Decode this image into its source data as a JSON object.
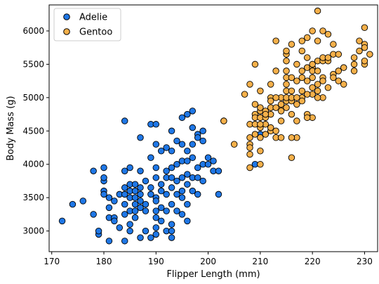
{
  "chart_data": {
    "type": "scatter",
    "xlabel": "Flipper Length (mm)",
    "ylabel": "Body Mass (g)",
    "xlim": [
      169.5,
      232.5
    ],
    "ylim": [
      2690,
      6390
    ],
    "xticks": [
      170,
      180,
      190,
      200,
      210,
      220,
      230
    ],
    "yticks": [
      3000,
      3500,
      4000,
      4500,
      5000,
      5500,
      6000
    ],
    "grid": false,
    "legend": "top-left",
    "series": [
      {
        "name": "Adelie",
        "color": "#1f77e6",
        "points": [
          [
            172,
            3150
          ],
          [
            174,
            3400
          ],
          [
            176,
            3450
          ],
          [
            178,
            3250
          ],
          [
            178,
            3900
          ],
          [
            179,
            2950
          ],
          [
            179,
            3000
          ],
          [
            180,
            3950
          ],
          [
            180,
            3750
          ],
          [
            180,
            3800
          ],
          [
            180,
            3600
          ],
          [
            180,
            3550
          ],
          [
            181,
            3350
          ],
          [
            181,
            3200
          ],
          [
            181,
            3500
          ],
          [
            181,
            2850
          ],
          [
            182,
            3200
          ],
          [
            182,
            3450
          ],
          [
            182,
            3150
          ],
          [
            183,
            3050
          ],
          [
            183,
            3550
          ],
          [
            184,
            4650
          ],
          [
            184,
            3900
          ],
          [
            184,
            3650
          ],
          [
            184,
            3550
          ],
          [
            184,
            3400
          ],
          [
            184,
            3250
          ],
          [
            184,
            2850
          ],
          [
            185,
            3950
          ],
          [
            185,
            3700
          ],
          [
            185,
            3600
          ],
          [
            185,
            3500
          ],
          [
            185,
            3300
          ],
          [
            185,
            3100
          ],
          [
            185,
            3000
          ],
          [
            186,
            3500
          ],
          [
            186,
            3600
          ],
          [
            186,
            3700
          ],
          [
            186,
            3400
          ],
          [
            186,
            3300
          ],
          [
            186,
            3200
          ],
          [
            187,
            3450
          ],
          [
            187,
            3650
          ],
          [
            187,
            3550
          ],
          [
            187,
            3350
          ],
          [
            187,
            2900
          ],
          [
            187,
            3900
          ],
          [
            188,
            3000
          ],
          [
            188,
            3400
          ],
          [
            188,
            3750
          ],
          [
            188,
            3300
          ],
          [
            189,
            4100
          ],
          [
            189,
            2900
          ],
          [
            189,
            3550
          ],
          [
            189,
            3650
          ],
          [
            190,
            3300
          ],
          [
            190,
            4300
          ],
          [
            190,
            3950
          ],
          [
            190,
            3800
          ],
          [
            190,
            3500
          ],
          [
            190,
            3450
          ],
          [
            190,
            3200
          ],
          [
            190,
            3050
          ],
          [
            190,
            2950
          ],
          [
            191,
            3700
          ],
          [
            191,
            3350
          ],
          [
            191,
            3150
          ],
          [
            191,
            3600
          ],
          [
            192,
            3900
          ],
          [
            192,
            3550
          ],
          [
            192,
            3800
          ],
          [
            192,
            3300
          ],
          [
            192,
            3000
          ],
          [
            193,
            4200
          ],
          [
            193,
            3950
          ],
          [
            193,
            3800
          ],
          [
            193,
            3650
          ],
          [
            193,
            3400
          ],
          [
            193,
            3100
          ],
          [
            193,
            3000
          ],
          [
            193,
            2900
          ],
          [
            194,
            4000
          ],
          [
            194,
            3750
          ],
          [
            194,
            3550
          ],
          [
            194,
            3300
          ],
          [
            195,
            4300
          ],
          [
            195,
            4050
          ],
          [
            195,
            3800
          ],
          [
            195,
            3600
          ],
          [
            195,
            3500
          ],
          [
            195,
            3250
          ],
          [
            196,
            4200
          ],
          [
            196,
            4050
          ],
          [
            196,
            3850
          ],
          [
            196,
            3700
          ],
          [
            196,
            3400
          ],
          [
            196,
            3150
          ],
          [
            197,
            4550
          ],
          [
            197,
            4300
          ],
          [
            197,
            4100
          ],
          [
            197,
            3800
          ],
          [
            197,
            3600
          ],
          [
            198,
            4450
          ],
          [
            198,
            3950
          ],
          [
            198,
            3800
          ],
          [
            198,
            3550
          ],
          [
            199,
            4350
          ],
          [
            199,
            4000
          ],
          [
            199,
            3750
          ],
          [
            200,
            4000
          ],
          [
            200,
            4100
          ],
          [
            201,
            4050
          ],
          [
            201,
            3900
          ],
          [
            202,
            3550
          ],
          [
            202,
            3900
          ],
          [
            203,
            4650
          ],
          [
            209,
            4000
          ],
          [
            210,
            4450
          ],
          [
            189,
            4600
          ],
          [
            190,
            4600
          ],
          [
            191,
            4200
          ],
          [
            192,
            4250
          ],
          [
            193,
            4500
          ],
          [
            194,
            4350
          ],
          [
            195,
            4700
          ],
          [
            196,
            4750
          ],
          [
            197,
            4800
          ],
          [
            198,
            4400
          ],
          [
            199,
            4500
          ],
          [
            187,
            4400
          ]
        ]
      },
      {
        "name": "Gentoo",
        "color": "#f5b04a",
        "points": [
          [
            203,
            4650
          ],
          [
            205,
            4300
          ],
          [
            207,
            5050
          ],
          [
            208,
            4600
          ],
          [
            208,
            4300
          ],
          [
            208,
            4400
          ],
          [
            209,
            4450
          ],
          [
            208,
            3950
          ],
          [
            208,
            4150
          ],
          [
            208,
            4250
          ],
          [
            208,
            5200
          ],
          [
            209,
            5500
          ],
          [
            209,
            4750
          ],
          [
            209,
            4600
          ],
          [
            209,
            4700
          ],
          [
            210,
            4200
          ],
          [
            210,
            4000
          ],
          [
            210,
            4400
          ],
          [
            210,
            4550
          ],
          [
            210,
            4800
          ],
          [
            210,
            5100
          ],
          [
            210,
            4850
          ],
          [
            210,
            4700
          ],
          [
            211,
            4800
          ],
          [
            211,
            4600
          ],
          [
            211,
            4450
          ],
          [
            212,
            4500
          ],
          [
            212,
            4750
          ],
          [
            212,
            4850
          ],
          [
            212,
            5000
          ],
          [
            212,
            5200
          ],
          [
            213,
            4500
          ],
          [
            213,
            4400
          ],
          [
            213,
            5850
          ],
          [
            213,
            5400
          ],
          [
            214,
            4850
          ],
          [
            214,
            4650
          ],
          [
            214,
            5000
          ],
          [
            214,
            4400
          ],
          [
            215,
            4950
          ],
          [
            215,
            5000
          ],
          [
            215,
            5100
          ],
          [
            215,
            5200
          ],
          [
            215,
            5300
          ],
          [
            215,
            5400
          ],
          [
            215,
            5550
          ],
          [
            215,
            5650
          ],
          [
            216,
            4100
          ],
          [
            216,
            4950
          ],
          [
            216,
            4750
          ],
          [
            216,
            5000
          ],
          [
            216,
            5300
          ],
          [
            216,
            5800
          ],
          [
            217,
            4900
          ],
          [
            217,
            4650
          ],
          [
            217,
            5250
          ],
          [
            217,
            4400
          ],
          [
            218,
            5300
          ],
          [
            218,
            5000
          ],
          [
            218,
            5400
          ],
          [
            218,
            5700
          ],
          [
            218,
            5850
          ],
          [
            219,
            5250
          ],
          [
            219,
            4750
          ],
          [
            219,
            5450
          ],
          [
            219,
            5900
          ],
          [
            220,
            4700
          ],
          [
            220,
            5050
          ],
          [
            220,
            5300
          ],
          [
            220,
            5450
          ],
          [
            220,
            6000
          ],
          [
            220,
            5400
          ],
          [
            221,
            5100
          ],
          [
            221,
            5200
          ],
          [
            221,
            5550
          ],
          [
            221,
            5850
          ],
          [
            221,
            6300
          ],
          [
            222,
            5000
          ],
          [
            222,
            5300
          ],
          [
            222,
            5550
          ],
          [
            222,
            6000
          ],
          [
            223,
            5150
          ],
          [
            223,
            5550
          ],
          [
            223,
            5950
          ],
          [
            224,
            5350
          ],
          [
            224,
            5650
          ],
          [
            225,
            5250
          ],
          [
            225,
            5400
          ],
          [
            226,
            5200
          ],
          [
            228,
            5400
          ],
          [
            228,
            5600
          ],
          [
            229,
            5700
          ],
          [
            229,
            5850
          ],
          [
            230,
            5800
          ],
          [
            230,
            5500
          ],
          [
            230,
            5550
          ],
          [
            230,
            6050
          ],
          [
            231,
            5650
          ],
          [
            214,
            4900
          ],
          [
            215,
            4850
          ],
          [
            216,
            5100
          ],
          [
            217,
            5000
          ],
          [
            218,
            5100
          ],
          [
            219,
            5050
          ],
          [
            220,
            5150
          ],
          [
            221,
            5400
          ],
          [
            222,
            5600
          ],
          [
            223,
            5600
          ],
          [
            224,
            5300
          ],
          [
            217,
            5500
          ],
          [
            219,
            4700
          ],
          [
            213,
            5000
          ],
          [
            212,
            4950
          ],
          [
            211,
            4700
          ],
          [
            210,
            4600
          ],
          [
            212,
            4550
          ],
          [
            211,
            4750
          ],
          [
            214,
            4800
          ],
          [
            216,
            4400
          ],
          [
            209,
            4900
          ],
          [
            213,
            4850
          ],
          [
            218,
            4950
          ],
          [
            215,
            5700
          ],
          [
            220,
            5500
          ],
          [
            221,
            5000
          ],
          [
            222,
            5250
          ],
          [
            224,
            5800
          ],
          [
            226,
            5450
          ],
          [
            228,
            5500
          ],
          [
            225,
            5650
          ],
          [
            230,
            5750
          ],
          [
            219,
            5600
          ]
        ]
      }
    ]
  }
}
